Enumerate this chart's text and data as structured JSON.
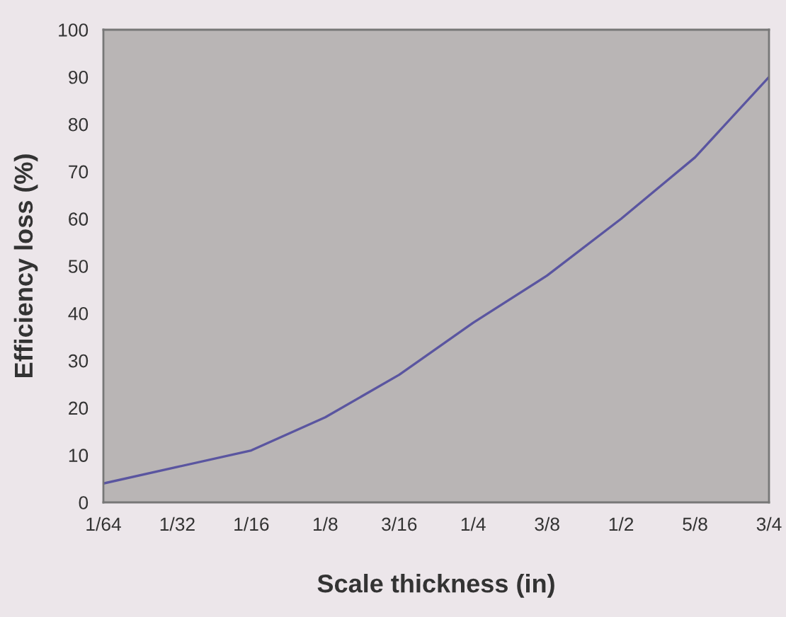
{
  "chart_data": {
    "type": "line",
    "xlabel": "Scale thickness (in)",
    "ylabel": "Efficiency loss (%)",
    "categories": [
      "1/64",
      "1/32",
      "1/16",
      "1/8",
      "3/16",
      "1/4",
      "3/8",
      "1/2",
      "5/8",
      "3/4"
    ],
    "series": [
      {
        "color": "#5a55a0",
        "values": [
          4,
          7.5,
          11,
          18,
          27,
          38,
          48,
          60,
          73,
          90
        ]
      }
    ],
    "ylim": [
      0,
      100
    ],
    "yticks": [
      0,
      10,
      20,
      30,
      40,
      50,
      60,
      70,
      80,
      90,
      100
    ],
    "grid": false,
    "marker": "none",
    "line_style": "solid"
  }
}
